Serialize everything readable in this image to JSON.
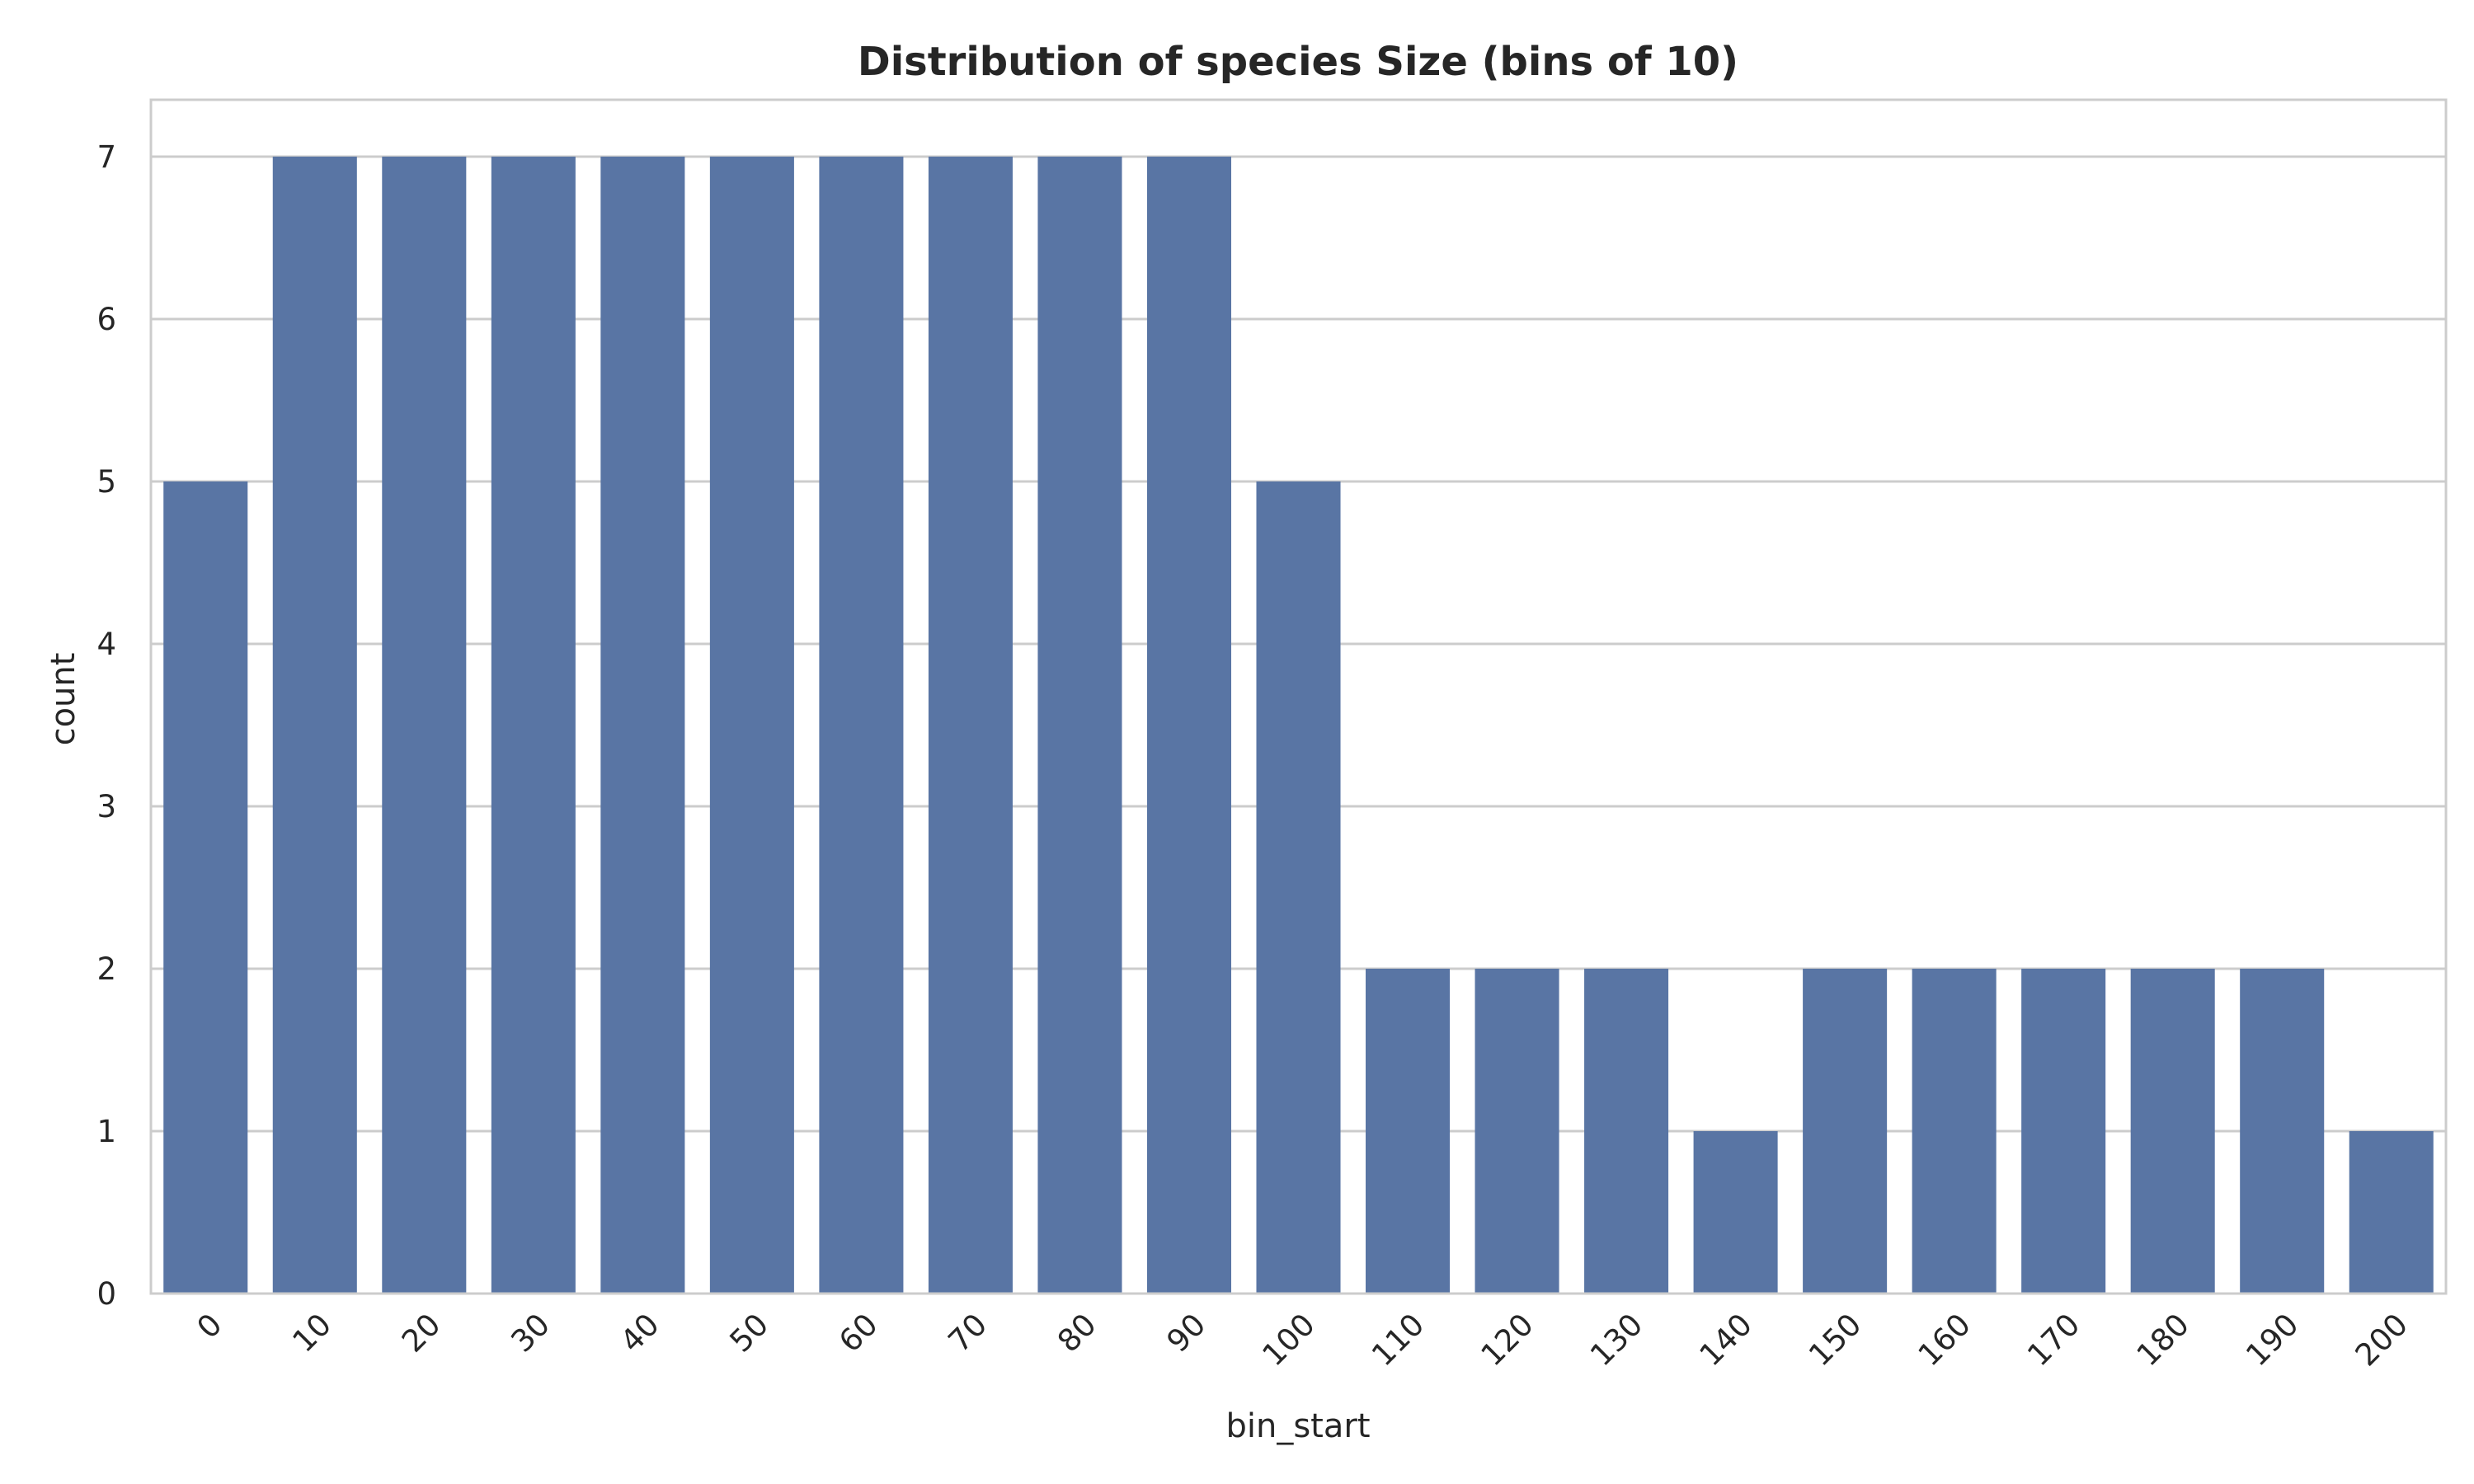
{
  "chart_data": {
    "type": "bar",
    "title": "Distribution of species Size (bins of 10)",
    "xlabel": "bin_start",
    "ylabel": "count",
    "categories": [
      "0",
      "10",
      "20",
      "30",
      "40",
      "50",
      "60",
      "70",
      "80",
      "90",
      "100",
      "110",
      "120",
      "130",
      "140",
      "150",
      "160",
      "170",
      "180",
      "190",
      "200"
    ],
    "values": [
      5,
      7,
      7,
      7,
      7,
      7,
      7,
      7,
      7,
      7,
      5,
      2,
      2,
      2,
      1,
      2,
      2,
      2,
      2,
      2,
      1
    ],
    "ylim": [
      0,
      7.35
    ],
    "yticks": [
      "0",
      "1",
      "2",
      "3",
      "4",
      "5",
      "6",
      "7"
    ],
    "grid": true,
    "bar_color": "#5975a4",
    "grid_color": "#cccccc",
    "frame_color": "#cccccc"
  }
}
